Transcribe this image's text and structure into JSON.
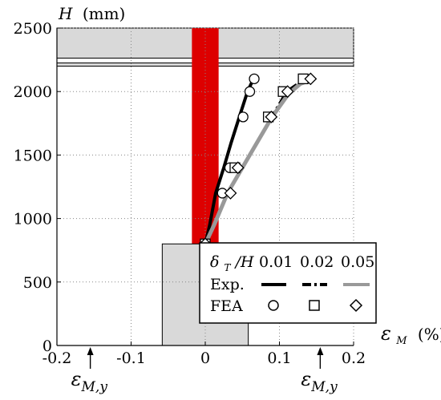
{
  "chart_data": {
    "type": "scatter",
    "xlim": [
      -0.2,
      0.2
    ],
    "ylim": [
      0,
      2500
    ],
    "x_ticks": [
      "-0.2",
      "-0.1",
      "0",
      "0.1",
      "0.2"
    ],
    "y_ticks": [
      "0",
      "500",
      "1000",
      "1500",
      "2000",
      "2500"
    ],
    "x_tick_values": [
      -0.2,
      -0.1,
      0,
      0.1,
      0.2
    ],
    "y_tick_values": [
      0,
      500,
      1000,
      1500,
      2000,
      2500
    ],
    "ylabel": {
      "symbol": "H",
      "unit": "(mm)"
    },
    "xlabel": {
      "symbol": "ε",
      "sub": "M",
      "unit": "(%)"
    },
    "grid": true,
    "yield_markers": [
      {
        "x": -0.155,
        "symbol": "ε",
        "sub": "M,y"
      },
      {
        "x": 0.155,
        "symbol": "ε",
        "sub": "M,y"
      }
    ],
    "bands": [
      {
        "kind": "slab",
        "y_from": 2200,
        "y_to": 2500,
        "color": "#d9d9d9"
      },
      {
        "kind": "column",
        "x_from": -0.018,
        "x_to": 0.018,
        "y_from": 0,
        "y_to": 2500,
        "color": "#dd0000"
      },
      {
        "kind": "base",
        "x_from": -0.058,
        "x_to": 0.058,
        "y_from": 0,
        "y_to": 800,
        "color": "#d9d9d9"
      }
    ],
    "legend": {
      "placement": "bottom-right",
      "header": {
        "symbol": "δ",
        "sub": "T",
        "suffix": "/H"
      },
      "columns": [
        "0.01",
        "0.02",
        "0.05"
      ],
      "rows": [
        "Exp.",
        "FEA"
      ]
    },
    "series": [
      {
        "drift": "0.01",
        "kind": "exp",
        "style": "solid",
        "color": "#000000",
        "x": [
          0,
          0.006,
          0.014,
          0.025,
          0.035,
          0.046,
          0.057,
          0.065
        ],
        "y": [
          800,
          950,
          1200,
          1400,
          1600,
          1800,
          2000,
          2100
        ]
      },
      {
        "drift": "0.01",
        "kind": "fea",
        "marker": "circle",
        "x": [
          0.0,
          0.023,
          0.033,
          0.051,
          0.06,
          0.066
        ],
        "y": [
          800,
          1200,
          1400,
          1800,
          2000,
          2100
        ]
      },
      {
        "drift": "0.02",
        "kind": "exp",
        "style": "dashdot",
        "color": "#000000",
        "x": [
          0,
          0.012,
          0.03,
          0.06,
          0.09,
          0.11,
          0.135
        ],
        "y": [
          800,
          950,
          1200,
          1500,
          1800,
          2000,
          2100
        ]
      },
      {
        "drift": "0.02",
        "kind": "fea",
        "marker": "square",
        "x": [
          0.0,
          0.04,
          0.085,
          0.105,
          0.132
        ],
        "y": [
          800,
          1400,
          1800,
          2000,
          2100
        ]
      },
      {
        "drift": "0.05",
        "kind": "exp",
        "style": "solid",
        "color": "#999999",
        "x": [
          0,
          0.012,
          0.03,
          0.06,
          0.09,
          0.112,
          0.128,
          0.145
        ],
        "y": [
          800,
          950,
          1200,
          1500,
          1800,
          1980,
          2060,
          2100
        ]
      },
      {
        "drift": "0.05",
        "kind": "fea",
        "marker": "diamond",
        "x": [
          0.0,
          0.034,
          0.044,
          0.089,
          0.111,
          0.142
        ],
        "y": [
          800,
          1200,
          1400,
          1800,
          2000,
          2100
        ]
      }
    ]
  }
}
